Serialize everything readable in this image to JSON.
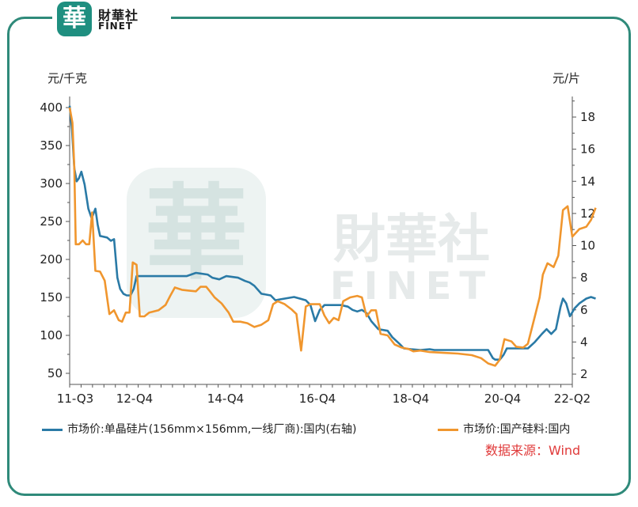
{
  "brand": {
    "seal": "華",
    "name_cn": "財華社",
    "name_en": "FINET"
  },
  "watermark": {
    "seal": "華",
    "name_cn": "財華社",
    "name_en": "FINET"
  },
  "source_text": "数据来源：Wind",
  "colors": {
    "frame": "#2f8a7a",
    "series_blue": "#2a7aa6",
    "series_orange": "#f0962e",
    "source": "#e03a3a"
  },
  "chart_data": {
    "type": "line",
    "left_axis_unit": "元/千克",
    "right_axis_unit": "元/片",
    "left_ylim": [
      50,
      400
    ],
    "right_ylim": [
      2,
      18
    ],
    "left_ticks": [
      "50",
      "100",
      "150",
      "200",
      "250",
      "300",
      "350",
      "400"
    ],
    "right_ticks": [
      "2",
      "4",
      "6",
      "8",
      "10",
      "12",
      "14",
      "16",
      "18"
    ],
    "x_ticks": [
      "11-Q3",
      "12-Q4",
      "14-Q4",
      "16-Q4",
      "18-Q4",
      "20-Q4",
      "22-Q2"
    ],
    "x_range": [
      2011.5,
      2022.25
    ],
    "grid": false,
    "series": [
      {
        "name": "市场价:单晶硅片(156mm×156mm,一线厂商):国内(右轴)",
        "axis": "right",
        "color": "#2a7aa6",
        "points": [
          [
            2011.5,
            18.7
          ],
          [
            2011.55,
            17.2
          ],
          [
            2011.6,
            14.8
          ],
          [
            2011.65,
            14.0
          ],
          [
            2011.7,
            14.2
          ],
          [
            2011.75,
            14.6
          ],
          [
            2011.82,
            13.8
          ],
          [
            2011.9,
            12.3
          ],
          [
            2011.97,
            11.7
          ],
          [
            2012.05,
            12.3
          ],
          [
            2012.1,
            11.3
          ],
          [
            2012.15,
            10.6
          ],
          [
            2012.3,
            10.5
          ],
          [
            2012.38,
            10.3
          ],
          [
            2012.45,
            10.4
          ],
          [
            2012.52,
            8.0
          ],
          [
            2012.58,
            7.3
          ],
          [
            2012.65,
            7.0
          ],
          [
            2012.72,
            6.9
          ],
          [
            2012.8,
            6.9
          ],
          [
            2012.87,
            7.3
          ],
          [
            2012.93,
            8.1
          ],
          [
            2013.0,
            8.1
          ],
          [
            2013.5,
            8.1
          ],
          [
            2014.0,
            8.1
          ],
          [
            2014.2,
            8.3
          ],
          [
            2014.45,
            8.2
          ],
          [
            2014.55,
            8.0
          ],
          [
            2014.7,
            7.9
          ],
          [
            2014.85,
            8.1
          ],
          [
            2015.1,
            8.0
          ],
          [
            2015.25,
            7.8
          ],
          [
            2015.35,
            7.7
          ],
          [
            2015.45,
            7.5
          ],
          [
            2015.6,
            7.0
          ],
          [
            2015.8,
            6.9
          ],
          [
            2015.9,
            6.6
          ],
          [
            2016.0,
            6.65
          ],
          [
            2016.3,
            6.8
          ],
          [
            2016.55,
            6.6
          ],
          [
            2016.65,
            6.3
          ],
          [
            2016.75,
            5.3
          ],
          [
            2016.85,
            6.0
          ],
          [
            2016.95,
            6.3
          ],
          [
            2017.1,
            6.3
          ],
          [
            2017.3,
            6.3
          ],
          [
            2017.45,
            6.2
          ],
          [
            2017.55,
            6.0
          ],
          [
            2017.65,
            5.9
          ],
          [
            2017.75,
            6.0
          ],
          [
            2017.85,
            5.8
          ],
          [
            2017.95,
            5.3
          ],
          [
            2018.1,
            4.8
          ],
          [
            2018.3,
            4.7
          ],
          [
            2018.4,
            4.3
          ],
          [
            2018.55,
            3.9
          ],
          [
            2018.65,
            3.6
          ],
          [
            2018.8,
            3.55
          ],
          [
            2019.0,
            3.5
          ],
          [
            2019.2,
            3.55
          ],
          [
            2019.3,
            3.5
          ],
          [
            2019.6,
            3.5
          ],
          [
            2019.9,
            3.5
          ],
          [
            2020.2,
            3.5
          ],
          [
            2020.45,
            3.5
          ],
          [
            2020.55,
            3.0
          ],
          [
            2020.6,
            2.9
          ],
          [
            2020.7,
            2.9
          ],
          [
            2020.78,
            3.2
          ],
          [
            2020.85,
            3.6
          ],
          [
            2021.0,
            3.6
          ],
          [
            2021.3,
            3.6
          ],
          [
            2021.45,
            4.0
          ],
          [
            2021.6,
            4.5
          ],
          [
            2021.7,
            4.8
          ],
          [
            2021.8,
            4.5
          ],
          [
            2021.9,
            4.8
          ],
          [
            2022.0,
            6.2
          ],
          [
            2022.05,
            6.7
          ],
          [
            2022.12,
            6.4
          ],
          [
            2022.2,
            5.6
          ],
          [
            2022.3,
            6.1
          ],
          [
            2022.4,
            6.4
          ],
          [
            2022.55,
            6.7
          ],
          [
            2022.65,
            6.8
          ],
          [
            2022.75,
            6.7
          ]
        ]
      },
      {
        "name": "市场价:国产硅料:国内",
        "axis": "left",
        "color": "#f0962e",
        "points": [
          [
            2011.5,
            400
          ],
          [
            2011.56,
            380
          ],
          [
            2011.6,
            320
          ],
          [
            2011.63,
            220
          ],
          [
            2011.7,
            220
          ],
          [
            2011.78,
            225
          ],
          [
            2011.85,
            220
          ],
          [
            2011.92,
            220
          ],
          [
            2011.98,
            262
          ],
          [
            2012.05,
            185
          ],
          [
            2012.15,
            184
          ],
          [
            2012.25,
            172
          ],
          [
            2012.35,
            128
          ],
          [
            2012.45,
            133
          ],
          [
            2012.55,
            120
          ],
          [
            2012.62,
            118
          ],
          [
            2012.7,
            130
          ],
          [
            2012.78,
            130
          ],
          [
            2012.85,
            196
          ],
          [
            2012.93,
            193
          ],
          [
            2013.0,
            125
          ],
          [
            2013.1,
            125
          ],
          [
            2013.2,
            130
          ],
          [
            2013.4,
            133
          ],
          [
            2013.55,
            140
          ],
          [
            2013.65,
            152
          ],
          [
            2013.75,
            163
          ],
          [
            2013.9,
            160
          ],
          [
            2014.05,
            159
          ],
          [
            2014.2,
            158
          ],
          [
            2014.3,
            164
          ],
          [
            2014.42,
            164
          ],
          [
            2014.5,
            158
          ],
          [
            2014.6,
            150
          ],
          [
            2014.75,
            142
          ],
          [
            2014.9,
            130
          ],
          [
            2015.0,
            118
          ],
          [
            2015.15,
            118
          ],
          [
            2015.3,
            116
          ],
          [
            2015.45,
            111
          ],
          [
            2015.6,
            114
          ],
          [
            2015.75,
            120
          ],
          [
            2015.85,
            141
          ],
          [
            2015.95,
            145
          ],
          [
            2016.1,
            141
          ],
          [
            2016.25,
            134
          ],
          [
            2016.35,
            128
          ],
          [
            2016.45,
            80
          ],
          [
            2016.55,
            138
          ],
          [
            2016.65,
            141
          ],
          [
            2016.85,
            141
          ],
          [
            2016.95,
            126
          ],
          [
            2017.05,
            116
          ],
          [
            2017.15,
            123
          ],
          [
            2017.25,
            120
          ],
          [
            2017.35,
            145
          ],
          [
            2017.5,
            150
          ],
          [
            2017.65,
            152
          ],
          [
            2017.75,
            150
          ],
          [
            2017.85,
            125
          ],
          [
            2017.95,
            133
          ],
          [
            2018.05,
            133
          ],
          [
            2018.15,
            102
          ],
          [
            2018.3,
            100
          ],
          [
            2018.45,
            88
          ],
          [
            2018.6,
            84
          ],
          [
            2018.75,
            82
          ],
          [
            2018.85,
            79
          ],
          [
            2019.0,
            80
          ],
          [
            2019.2,
            78
          ],
          [
            2019.5,
            77
          ],
          [
            2019.8,
            76
          ],
          [
            2020.1,
            74
          ],
          [
            2020.3,
            70
          ],
          [
            2020.45,
            63
          ],
          [
            2020.6,
            60
          ],
          [
            2020.7,
            68
          ],
          [
            2020.8,
            95
          ],
          [
            2020.95,
            92
          ],
          [
            2021.05,
            85
          ],
          [
            2021.2,
            84
          ],
          [
            2021.3,
            89
          ],
          [
            2021.45,
            125
          ],
          [
            2021.55,
            150
          ],
          [
            2021.62,
            180
          ],
          [
            2021.72,
            195
          ],
          [
            2021.85,
            190
          ],
          [
            2021.95,
            205
          ],
          [
            2022.05,
            265
          ],
          [
            2022.15,
            270
          ],
          [
            2022.25,
            230
          ],
          [
            2022.4,
            240
          ],
          [
            2022.55,
            243
          ],
          [
            2022.65,
            252
          ],
          [
            2022.75,
            268
          ]
        ]
      }
    ]
  }
}
